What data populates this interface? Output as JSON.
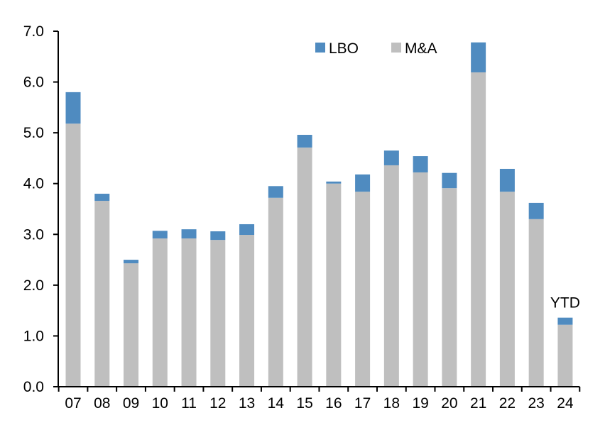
{
  "chart_data": {
    "type": "bar",
    "stacked": true,
    "categories": [
      "07",
      "08",
      "09",
      "10",
      "11",
      "12",
      "13",
      "14",
      "15",
      "16",
      "17",
      "18",
      "19",
      "20",
      "21",
      "22",
      "23",
      "24"
    ],
    "series": [
      {
        "name": "M&A",
        "color": "#bfbfbf",
        "values": [
          5.18,
          3.66,
          2.43,
          2.92,
          2.92,
          2.89,
          2.99,
          3.72,
          4.71,
          4.0,
          3.84,
          4.36,
          4.22,
          3.91,
          6.19,
          3.84,
          3.3,
          1.22
        ]
      },
      {
        "name": "LBO",
        "color": "#4f8bc0",
        "values": [
          0.62,
          0.14,
          0.07,
          0.15,
          0.18,
          0.17,
          0.21,
          0.23,
          0.25,
          0.04,
          0.34,
          0.29,
          0.32,
          0.3,
          0.59,
          0.45,
          0.32,
          0.14
        ]
      }
    ],
    "ylim": [
      0,
      7
    ],
    "yticks": [
      "0.0",
      "1.0",
      "2.0",
      "3.0",
      "4.0",
      "5.0",
      "6.0",
      "7.0"
    ],
    "annotations": [
      {
        "category": "24",
        "text": "YTD"
      }
    ],
    "legend": {
      "placement": "top-center",
      "order": [
        "LBO",
        "M&A"
      ]
    },
    "grid": false,
    "title": "",
    "xlabel": "",
    "ylabel": ""
  }
}
